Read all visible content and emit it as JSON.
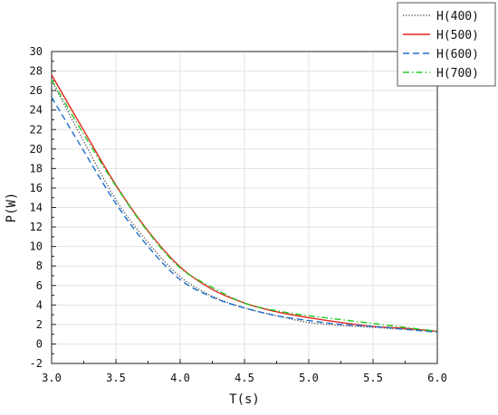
{
  "chart_data": {
    "type": "line",
    "title": "",
    "xlabel": "T(s)",
    "ylabel": "P(W)",
    "xlim": [
      3.0,
      6.0
    ],
    "ylim": [
      -2,
      30
    ],
    "x_ticks": [
      "3.0",
      "3.5",
      "4.0",
      "4.5",
      "5.0",
      "5.5",
      "6.0"
    ],
    "y_ticks": [
      "-2",
      "0",
      "2",
      "4",
      "6",
      "8",
      "10",
      "12",
      "14",
      "16",
      "18",
      "20",
      "22",
      "24",
      "26",
      "28",
      "30"
    ],
    "grid": true,
    "legend_position": "top-right",
    "x": [
      3.0,
      3.25,
      3.5,
      3.75,
      4.0,
      4.25,
      4.5,
      4.75,
      5.0,
      5.25,
      5.5,
      5.75,
      6.0
    ],
    "series": [
      {
        "name": "H(400)",
        "color": "#555555",
        "dash": "dotted",
        "values": [
          27.0,
          20.8,
          14.8,
          10.4,
          6.9,
          4.9,
          3.7,
          2.9,
          2.2,
          1.9,
          1.7,
          1.5,
          1.3
        ]
      },
      {
        "name": "H(500)",
        "color": "#e3261f",
        "dash": "solid",
        "values": [
          27.6,
          21.9,
          16.3,
          11.6,
          7.9,
          5.6,
          4.2,
          3.3,
          2.7,
          2.2,
          1.8,
          1.6,
          1.3
        ]
      },
      {
        "name": "H(600)",
        "color": "#1f6fcf",
        "dash": "dashed",
        "values": [
          25.3,
          19.8,
          14.4,
          10.0,
          6.6,
          4.8,
          3.7,
          2.9,
          2.4,
          2.0,
          1.8,
          1.5,
          1.2
        ]
      },
      {
        "name": "H(700)",
        "color": "#22cc22",
        "dash": "dashdot",
        "values": [
          27.1,
          21.5,
          16.2,
          11.5,
          7.8,
          5.8,
          4.2,
          3.4,
          2.9,
          2.5,
          2.1,
          1.7,
          1.3
        ]
      }
    ]
  }
}
